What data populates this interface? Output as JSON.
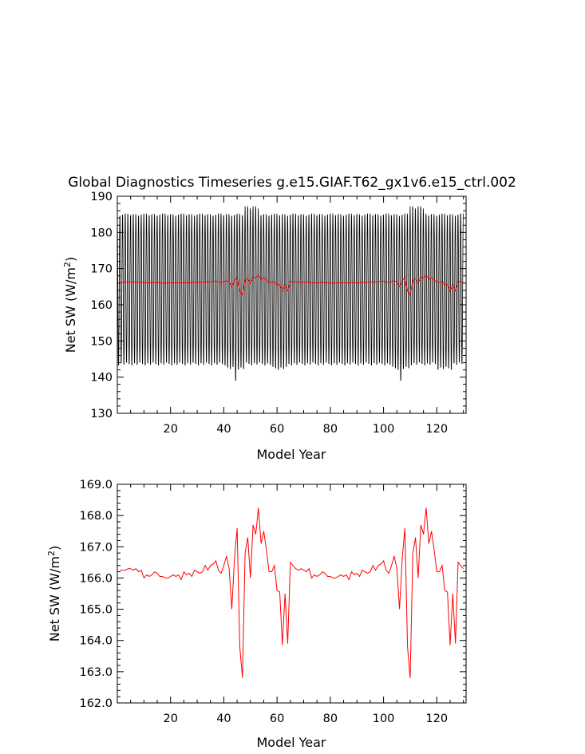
{
  "chart_data": [
    {
      "type": "line",
      "title": "Global Diagnostics Timeseries g.e15.GIAF.T62_gx1v6.e15_ctrl.002",
      "xlabel": "Model Year",
      "ylabel": "Net SW (W/m²)",
      "ylabel_base": "Net SW (W/m",
      "ylabel_sup": "2",
      "ylabel_close": ")",
      "xlim": [
        0,
        131
      ],
      "ylim": [
        130,
        190
      ],
      "xticks": [
        20,
        40,
        60,
        80,
        100,
        120
      ],
      "xtick_labels": [
        "20",
        "40",
        "60",
        "80",
        "100",
        "120"
      ],
      "yticks": [
        130,
        140,
        150,
        160,
        170,
        180,
        190
      ],
      "ytick_labels": [
        "130",
        "140",
        "150",
        "160",
        "170",
        "180",
        "190"
      ],
      "grid": false,
      "series": [
        {
          "color": "#000000",
          "style": "monthly seasonal cycle",
          "summary": {
            "typical_max": 185.5,
            "typical_min": 143.0,
            "max_years_49_53": 188.0,
            "min_year_45": 139.5,
            "min_year_107": 139.5
          }
        },
        {
          "color": "#ff0000",
          "style": "annual mean",
          "ref": "annual_mean"
        }
      ]
    },
    {
      "type": "line",
      "title": "",
      "xlabel": "Model Year",
      "ylabel": "Net SW (W/m²)",
      "ylabel_base": "Net SW (W/m",
      "ylabel_sup": "2",
      "ylabel_close": ")",
      "xlim": [
        0,
        131
      ],
      "ylim": [
        162.0,
        169.0
      ],
      "xticks": [
        20,
        40,
        60,
        80,
        100,
        120
      ],
      "xtick_labels": [
        "20",
        "40",
        "60",
        "80",
        "100",
        "120"
      ],
      "yticks": [
        162.0,
        163.0,
        164.0,
        165.0,
        166.0,
        167.0,
        168.0,
        169.0
      ],
      "ytick_labels": [
        "162.0",
        "163.0",
        "164.0",
        "165.0",
        "166.0",
        "167.0",
        "168.0",
        "169.0"
      ],
      "grid": false,
      "series": [
        {
          "color": "#ff0000",
          "ref": "annual_mean"
        }
      ]
    }
  ],
  "annual_mean": {
    "x": [
      1,
      2,
      3,
      4,
      5,
      6,
      7,
      8,
      9,
      10,
      11,
      12,
      13,
      14,
      15,
      16,
      17,
      18,
      19,
      20,
      21,
      22,
      23,
      24,
      25,
      26,
      27,
      28,
      29,
      30,
      31,
      32,
      33,
      34,
      35,
      36,
      37,
      38,
      39,
      40,
      41,
      42,
      43,
      44,
      45,
      46,
      47,
      48,
      49,
      50,
      51,
      52,
      53,
      54,
      55,
      56,
      57,
      58,
      59,
      60,
      61,
      62,
      63,
      64,
      65,
      66,
      67,
      68,
      69,
      70,
      71,
      72,
      73,
      74,
      75,
      76,
      77,
      78,
      79,
      80,
      81,
      82,
      83,
      84,
      85,
      86,
      87,
      88,
      89,
      90,
      91,
      92,
      93,
      94,
      95,
      96,
      97,
      98,
      99,
      100,
      101,
      102,
      103,
      104,
      105,
      106,
      107,
      108,
      109,
      110,
      111,
      112,
      113,
      114,
      115,
      116,
      117,
      118,
      119,
      120,
      121,
      122,
      123,
      124,
      125,
      126,
      127,
      128,
      129,
      130
    ],
    "y": [
      166.25,
      166.25,
      166.25,
      166.3,
      166.3,
      166.25,
      166.3,
      166.2,
      166.25,
      166.0,
      166.1,
      166.05,
      166.1,
      166.2,
      166.15,
      166.05,
      166.05,
      166.0,
      166.0,
      166.05,
      166.1,
      166.05,
      166.1,
      165.95,
      166.2,
      166.1,
      166.15,
      166.05,
      166.25,
      166.2,
      166.15,
      166.2,
      166.4,
      166.25,
      166.4,
      166.45,
      166.55,
      166.25,
      166.15,
      166.4,
      166.7,
      166.3,
      165.0,
      166.6,
      167.6,
      163.8,
      162.8,
      166.8,
      167.3,
      166.0,
      167.7,
      167.4,
      168.25,
      167.1,
      167.5,
      166.9,
      166.2,
      166.2,
      166.4,
      165.6,
      165.55,
      163.85,
      165.5,
      163.9,
      166.5,
      166.4,
      166.3,
      166.25,
      166.3,
      166.25,
      166.2,
      166.3,
      166.0,
      166.1,
      166.05,
      166.1,
      166.2,
      166.15,
      166.05,
      166.05,
      166.0,
      166.0,
      166.05,
      166.1,
      166.05,
      166.1,
      165.95,
      166.2,
      166.1,
      166.15,
      166.05,
      166.25,
      166.2,
      166.15,
      166.2,
      166.4,
      166.25,
      166.4,
      166.45,
      166.55,
      166.25,
      166.15,
      166.4,
      166.7,
      166.3,
      165.0,
      166.6,
      167.6,
      163.8,
      162.8,
      166.8,
      167.3,
      166.0,
      167.7,
      167.4,
      168.25,
      167.1,
      167.5,
      166.9,
      166.2,
      166.2,
      166.4,
      165.6,
      165.55,
      163.85,
      165.5,
      163.9,
      166.5,
      166.4,
      166.3
    ]
  }
}
